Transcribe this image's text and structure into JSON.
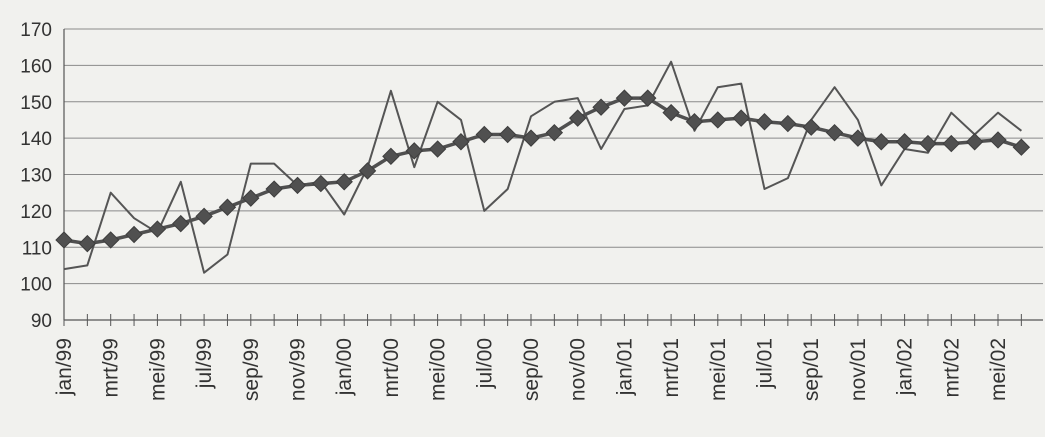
{
  "chart_data": {
    "type": "line",
    "title": "",
    "xlabel": "",
    "ylabel": "",
    "ylim": [
      90,
      170
    ],
    "yticks": [
      90,
      100,
      110,
      120,
      130,
      140,
      150,
      160,
      170
    ],
    "grid": "horizontal",
    "legend": "none",
    "x": [
      "jan/99",
      "feb/99",
      "mrt/99",
      "apr/99",
      "mei/99",
      "jun/99",
      "jul/99",
      "aug/99",
      "sep/99",
      "okt/99",
      "nov/99",
      "dec/99",
      "jan/00",
      "feb/00",
      "mrt/00",
      "apr/00",
      "mei/00",
      "jun/00",
      "jul/00",
      "aug/00",
      "sep/00",
      "okt/00",
      "nov/00",
      "dec/00",
      "jan/01",
      "feb/01",
      "mrt/01",
      "apr/01",
      "mei/01",
      "jun/01",
      "jul/01",
      "aug/01",
      "sep/01",
      "okt/01",
      "nov/01",
      "dec/01",
      "jan/02",
      "feb/02",
      "mrt/02",
      "apr/02",
      "mei/02",
      "jun/02"
    ],
    "xtick_labels": [
      "jan/99",
      "mrt/99",
      "mei/99",
      "jul/99",
      "sep/99",
      "nov/99",
      "jan/00",
      "mrt/00",
      "mei/00",
      "jul/00",
      "sep/00",
      "nov/00",
      "jan/01",
      "mrt/01",
      "mei/01",
      "jul/01",
      "sep/01",
      "nov/01",
      "jan/02",
      "mrt/02",
      "mei/02"
    ],
    "series": [
      {
        "values": [
          104,
          105,
          125,
          118,
          114,
          128,
          103,
          108,
          133,
          133,
          127,
          128,
          119,
          132,
          153,
          132,
          150,
          145,
          120,
          126,
          146,
          150,
          151,
          137,
          148,
          149,
          161,
          142,
          154,
          155,
          126,
          129,
          145,
          154,
          145,
          127,
          137,
          136,
          147,
          141,
          147,
          142
        ],
        "color": "#555555",
        "marker": "none"
      },
      {
        "values": [
          112,
          111,
          112,
          113.5,
          115,
          116.5,
          118.5,
          121,
          123.5,
          126,
          127,
          127.5,
          128,
          131,
          135,
          136.5,
          137,
          139,
          141,
          141,
          140,
          141.5,
          145.5,
          148.5,
          151,
          151,
          147,
          144.5,
          145,
          145.5,
          144.5,
          144,
          143,
          141.5,
          140,
          139,
          139,
          138.5,
          138.5,
          139,
          139.5,
          137.5
        ],
        "color": "#505050",
        "marker": "diamond"
      }
    ]
  }
}
